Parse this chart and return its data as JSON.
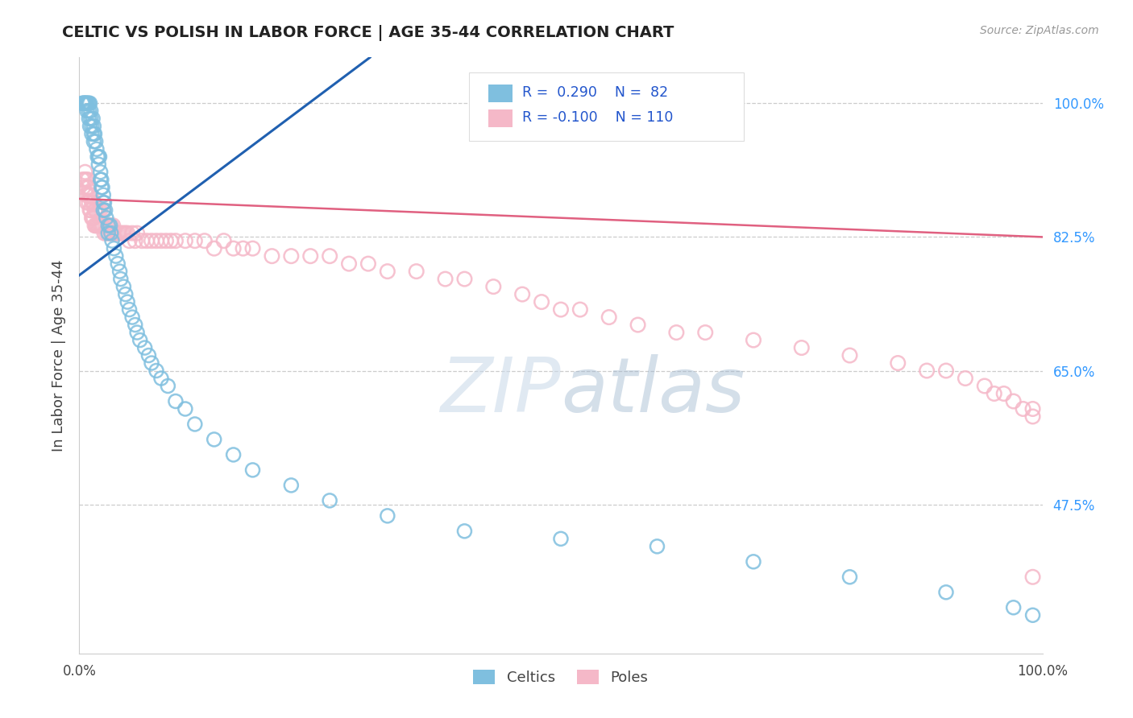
{
  "title": "CELTIC VS POLISH IN LABOR FORCE | AGE 35-44 CORRELATION CHART",
  "source": "Source: ZipAtlas.com",
  "ylabel": "In Labor Force | Age 35-44",
  "y_tick_values": [
    0.475,
    0.65,
    0.825,
    1.0
  ],
  "xlim": [
    0.0,
    1.0
  ],
  "ylim": [
    0.28,
    1.06
  ],
  "legend_blue_label": "Celtics",
  "legend_pink_label": "Poles",
  "R_blue": 0.29,
  "N_blue": 82,
  "R_pink": -0.1,
  "N_pink": 110,
  "blue_color": "#7fbfdf",
  "pink_color": "#f5b8c8",
  "blue_line_color": "#2060b0",
  "pink_line_color": "#e06080",
  "background_color": "#ffffff",
  "blue_trend_x0": 0.0,
  "blue_trend_y0": 0.775,
  "blue_trend_x1": 0.27,
  "blue_trend_y1": 1.03,
  "pink_trend_x0": 0.0,
  "pink_trend_y0": 0.875,
  "pink_trend_x1": 1.0,
  "pink_trend_y1": 0.825,
  "celtics_x": [
    0.003,
    0.004,
    0.005,
    0.005,
    0.006,
    0.007,
    0.007,
    0.008,
    0.008,
    0.009,
    0.01,
    0.01,
    0.01,
    0.011,
    0.011,
    0.012,
    0.012,
    0.013,
    0.013,
    0.014,
    0.015,
    0.015,
    0.015,
    0.016,
    0.017,
    0.018,
    0.019,
    0.02,
    0.02,
    0.021,
    0.022,
    0.022,
    0.023,
    0.023,
    0.024,
    0.025,
    0.025,
    0.025,
    0.026,
    0.027,
    0.028,
    0.03,
    0.03,
    0.032,
    0.033,
    0.034,
    0.036,
    0.038,
    0.04,
    0.042,
    0.043,
    0.046,
    0.048,
    0.05,
    0.052,
    0.055,
    0.058,
    0.06,
    0.063,
    0.068,
    0.072,
    0.075,
    0.08,
    0.085,
    0.092,
    0.1,
    0.11,
    0.12,
    0.14,
    0.16,
    0.18,
    0.22,
    0.26,
    0.32,
    0.4,
    0.5,
    0.6,
    0.7,
    0.8,
    0.9,
    0.97,
    0.99
  ],
  "celtics_y": [
    1.0,
    1.0,
    1.0,
    1.0,
    1.0,
    1.0,
    1.0,
    1.0,
    0.99,
    1.0,
    1.0,
    0.99,
    0.98,
    1.0,
    0.97,
    0.99,
    0.98,
    0.97,
    0.96,
    0.98,
    0.97,
    0.96,
    0.95,
    0.96,
    0.95,
    0.94,
    0.93,
    0.93,
    0.92,
    0.93,
    0.91,
    0.9,
    0.9,
    0.89,
    0.89,
    0.88,
    0.87,
    0.86,
    0.87,
    0.86,
    0.85,
    0.84,
    0.83,
    0.84,
    0.83,
    0.82,
    0.81,
    0.8,
    0.79,
    0.78,
    0.77,
    0.76,
    0.75,
    0.74,
    0.73,
    0.72,
    0.71,
    0.7,
    0.69,
    0.68,
    0.67,
    0.66,
    0.65,
    0.64,
    0.63,
    0.61,
    0.6,
    0.58,
    0.56,
    0.54,
    0.52,
    0.5,
    0.48,
    0.46,
    0.44,
    0.43,
    0.42,
    0.4,
    0.38,
    0.36,
    0.34,
    0.33
  ],
  "poles_x": [
    0.003,
    0.004,
    0.005,
    0.006,
    0.007,
    0.007,
    0.008,
    0.008,
    0.009,
    0.009,
    0.01,
    0.01,
    0.011,
    0.011,
    0.012,
    0.012,
    0.013,
    0.013,
    0.014,
    0.014,
    0.015,
    0.015,
    0.016,
    0.016,
    0.017,
    0.017,
    0.018,
    0.018,
    0.019,
    0.02,
    0.02,
    0.021,
    0.022,
    0.022,
    0.023,
    0.024,
    0.025,
    0.025,
    0.026,
    0.027,
    0.028,
    0.029,
    0.03,
    0.031,
    0.032,
    0.033,
    0.034,
    0.035,
    0.036,
    0.038,
    0.04,
    0.042,
    0.044,
    0.046,
    0.048,
    0.05,
    0.052,
    0.055,
    0.058,
    0.06,
    0.065,
    0.07,
    0.075,
    0.08,
    0.085,
    0.09,
    0.095,
    0.1,
    0.11,
    0.12,
    0.13,
    0.14,
    0.15,
    0.16,
    0.17,
    0.18,
    0.2,
    0.22,
    0.24,
    0.26,
    0.28,
    0.3,
    0.32,
    0.35,
    0.38,
    0.4,
    0.43,
    0.46,
    0.48,
    0.5,
    0.52,
    0.55,
    0.58,
    0.62,
    0.65,
    0.7,
    0.75,
    0.8,
    0.85,
    0.88,
    0.9,
    0.92,
    0.94,
    0.95,
    0.96,
    0.97,
    0.98,
    0.99,
    0.99,
    0.99
  ],
  "poles_y": [
    0.9,
    0.89,
    0.9,
    0.91,
    0.88,
    0.9,
    0.87,
    0.89,
    0.88,
    0.9,
    0.87,
    0.89,
    0.86,
    0.88,
    0.86,
    0.88,
    0.85,
    0.87,
    0.85,
    0.87,
    0.85,
    0.87,
    0.84,
    0.86,
    0.84,
    0.86,
    0.84,
    0.86,
    0.84,
    0.84,
    0.86,
    0.84,
    0.84,
    0.86,
    0.84,
    0.84,
    0.84,
    0.86,
    0.83,
    0.84,
    0.83,
    0.84,
    0.83,
    0.84,
    0.83,
    0.84,
    0.83,
    0.84,
    0.83,
    0.83,
    0.83,
    0.83,
    0.83,
    0.83,
    0.83,
    0.83,
    0.82,
    0.83,
    0.82,
    0.83,
    0.82,
    0.82,
    0.82,
    0.82,
    0.82,
    0.82,
    0.82,
    0.82,
    0.82,
    0.82,
    0.82,
    0.81,
    0.82,
    0.81,
    0.81,
    0.81,
    0.8,
    0.8,
    0.8,
    0.8,
    0.79,
    0.79,
    0.78,
    0.78,
    0.77,
    0.77,
    0.76,
    0.75,
    0.74,
    0.73,
    0.73,
    0.72,
    0.71,
    0.7,
    0.7,
    0.69,
    0.68,
    0.67,
    0.66,
    0.65,
    0.65,
    0.64,
    0.63,
    0.62,
    0.62,
    0.61,
    0.6,
    0.6,
    0.59,
    0.38
  ]
}
